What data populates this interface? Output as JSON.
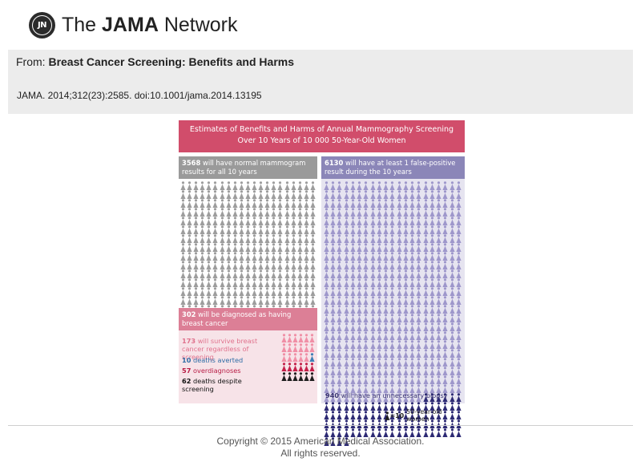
{
  "header": {
    "logo_initials": "JN",
    "site_name_prefix": "The ",
    "site_name_bold": "JAMA",
    "site_name_suffix": " Network"
  },
  "article": {
    "from_label": "From: ",
    "title": "Breast Cancer Screening: Benefits and Harms",
    "citation": "JAMA. 2014;312(23):2585. doi:10.1001/jama.2014.13195"
  },
  "infographic": {
    "title_line1": "Estimates of Benefits and Harms of Annual Mammography Screening",
    "title_line2": "Over 10 Years of 10 000 50-Year-Old Women",
    "normal": {
      "count": "3568",
      "text": " will have normal mammogram results for all 10 years",
      "icons": 357
    },
    "false_positive": {
      "count": "6130",
      "text": " will have at least 1 false-positive result during the 10 years",
      "icons": 613
    },
    "biopsy": {
      "count": "940",
      "text": " will have an unnecessary biopsy",
      "icons": 94
    },
    "diagnosed": {
      "count": "302",
      "text": " will be diagnosed as having breast cancer"
    },
    "survive": {
      "count": "173",
      "text": " will survive breast cancer regardless of screening"
    },
    "averted": {
      "count": "10",
      "text": " deaths averted"
    },
    "overdiagnoses": {
      "count": "57",
      "text": " overdiagnoses"
    },
    "deaths_despite": {
      "count": "62",
      "text": " deaths despite screening"
    },
    "legend": {
      "value": "=10",
      "text": "50-year-old women"
    }
  },
  "colors": {
    "banner": "#d14d6b",
    "normal_icon": "#9d9d9d",
    "fp_icon": "#9e97cb",
    "biopsy_icon": "#2d2a74",
    "survive_icon": "#f08fa6",
    "averted_icon": "#3d7fb6",
    "overdiagnosis_icon": "#c4204a",
    "death_icon": "#1e1e1e"
  },
  "footer": {
    "copyright_line1": "Copyright © 2015 American Medical Association.",
    "copyright_line2": "All rights reserved."
  }
}
